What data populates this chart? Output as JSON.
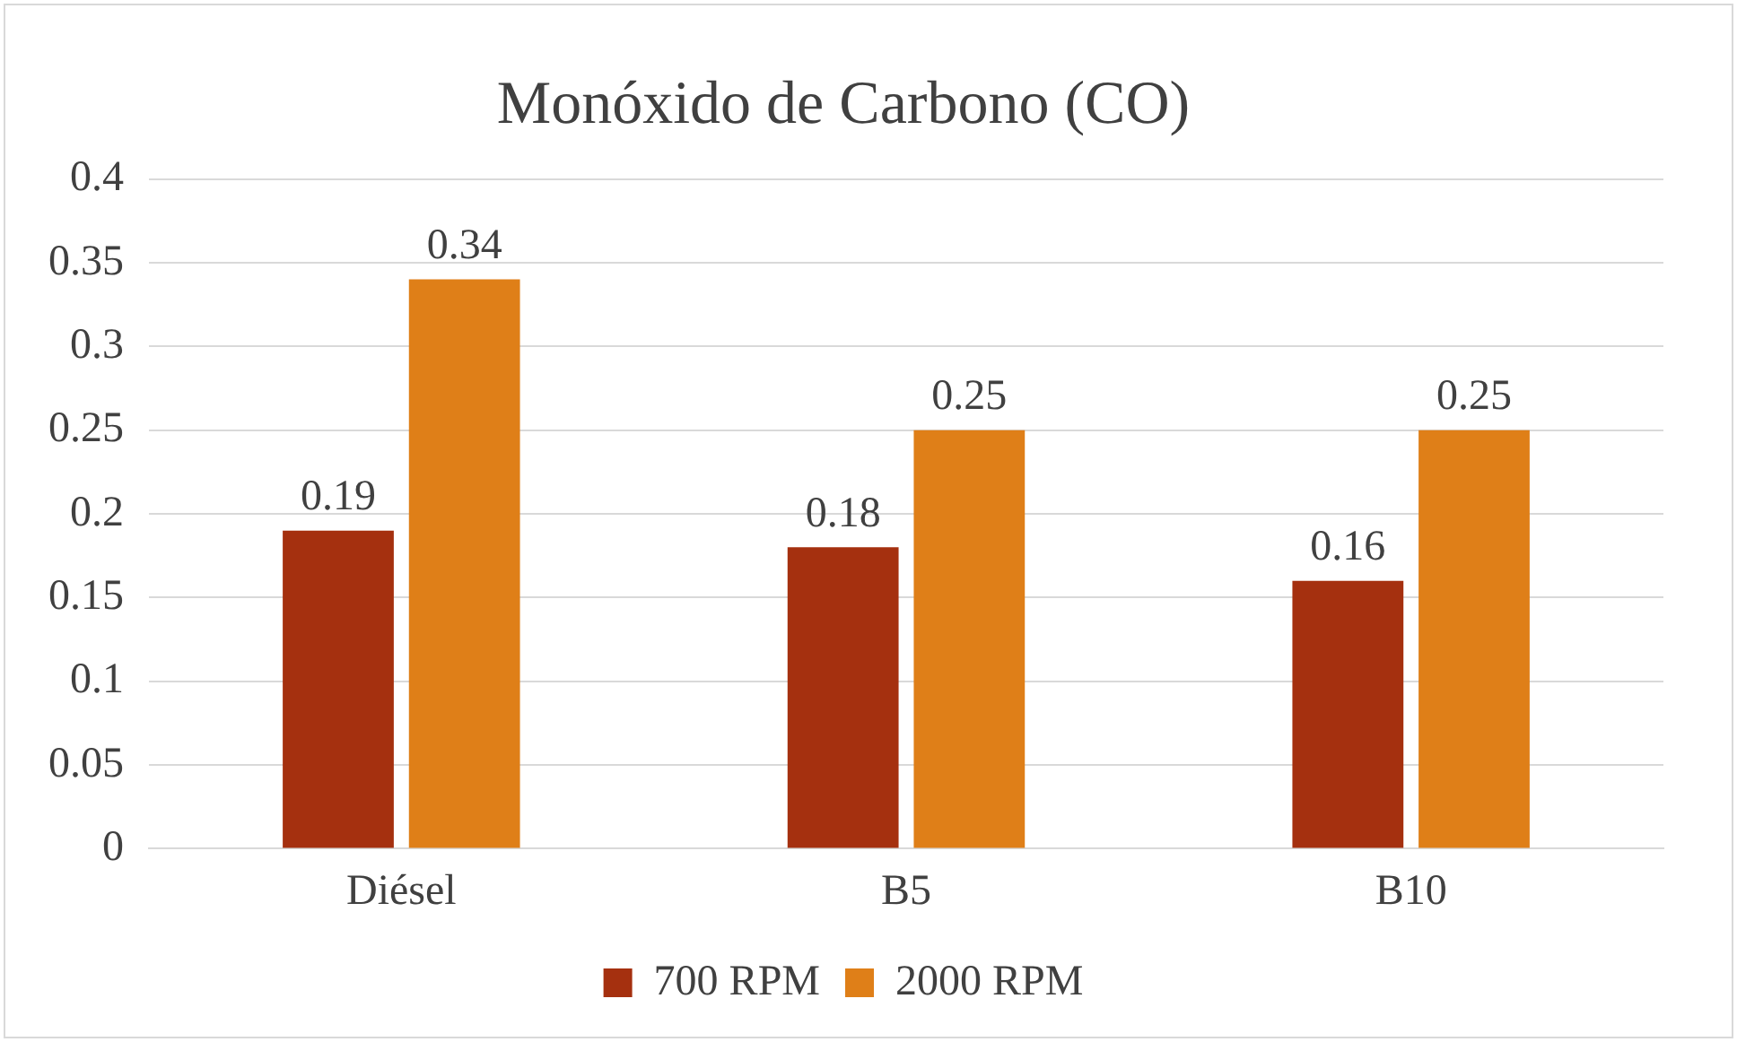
{
  "chart_data": {
    "type": "bar",
    "title": "Monóxido de Carbono (CO)",
    "categories": [
      "Diésel",
      "B5",
      "B10"
    ],
    "series": [
      {
        "name": "700 RPM",
        "color": "#a5300f",
        "values": [
          0.19,
          0.18,
          0.16
        ]
      },
      {
        "name": "2000 RPM",
        "color": "#df7f18",
        "values": [
          0.34,
          0.25,
          0.25
        ]
      }
    ],
    "ylim": [
      0,
      0.4
    ],
    "yticks": [
      0,
      0.05,
      0.1,
      0.15,
      0.2,
      0.25,
      0.3,
      0.35,
      0.4
    ],
    "grid": "y",
    "legend": "bottom",
    "data_labels": true
  }
}
